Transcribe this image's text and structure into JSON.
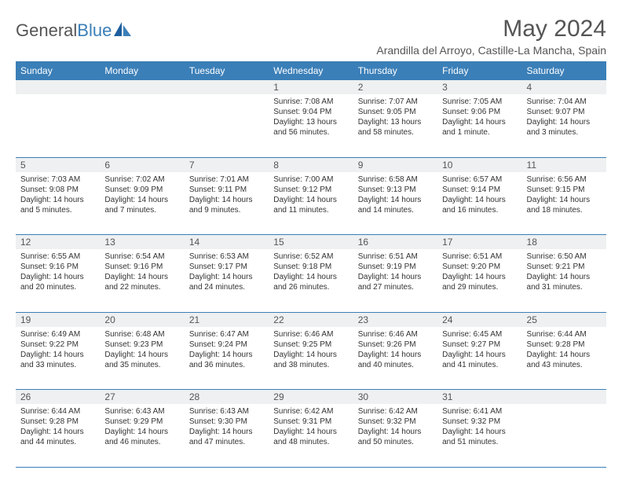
{
  "branding": {
    "textGray": "General",
    "textBlue": "Blue"
  },
  "header": {
    "title": "May 2024",
    "location": "Arandilla del Arroyo, Castille-La Mancha, Spain"
  },
  "colors": {
    "accent": "#3b7fb8",
    "dayRowBg": "#eef0f1",
    "textGray": "#555555",
    "textBody": "#333333"
  },
  "dayNames": [
    "Sunday",
    "Monday",
    "Tuesday",
    "Wednesday",
    "Thursday",
    "Friday",
    "Saturday"
  ],
  "weeks": [
    {
      "nums": [
        "",
        "",
        "",
        "1",
        "2",
        "3",
        "4"
      ],
      "cells": [
        {
          "sr": "",
          "ss": "",
          "dl": ""
        },
        {
          "sr": "",
          "ss": "",
          "dl": ""
        },
        {
          "sr": "",
          "ss": "",
          "dl": ""
        },
        {
          "sr": "Sunrise: 7:08 AM",
          "ss": "Sunset: 9:04 PM",
          "dl": "Daylight: 13 hours and 56 minutes."
        },
        {
          "sr": "Sunrise: 7:07 AM",
          "ss": "Sunset: 9:05 PM",
          "dl": "Daylight: 13 hours and 58 minutes."
        },
        {
          "sr": "Sunrise: 7:05 AM",
          "ss": "Sunset: 9:06 PM",
          "dl": "Daylight: 14 hours and 1 minute."
        },
        {
          "sr": "Sunrise: 7:04 AM",
          "ss": "Sunset: 9:07 PM",
          "dl": "Daylight: 14 hours and 3 minutes."
        }
      ]
    },
    {
      "nums": [
        "5",
        "6",
        "7",
        "8",
        "9",
        "10",
        "11"
      ],
      "cells": [
        {
          "sr": "Sunrise: 7:03 AM",
          "ss": "Sunset: 9:08 PM",
          "dl": "Daylight: 14 hours and 5 minutes."
        },
        {
          "sr": "Sunrise: 7:02 AM",
          "ss": "Sunset: 9:09 PM",
          "dl": "Daylight: 14 hours and 7 minutes."
        },
        {
          "sr": "Sunrise: 7:01 AM",
          "ss": "Sunset: 9:11 PM",
          "dl": "Daylight: 14 hours and 9 minutes."
        },
        {
          "sr": "Sunrise: 7:00 AM",
          "ss": "Sunset: 9:12 PM",
          "dl": "Daylight: 14 hours and 11 minutes."
        },
        {
          "sr": "Sunrise: 6:58 AM",
          "ss": "Sunset: 9:13 PM",
          "dl": "Daylight: 14 hours and 14 minutes."
        },
        {
          "sr": "Sunrise: 6:57 AM",
          "ss": "Sunset: 9:14 PM",
          "dl": "Daylight: 14 hours and 16 minutes."
        },
        {
          "sr": "Sunrise: 6:56 AM",
          "ss": "Sunset: 9:15 PM",
          "dl": "Daylight: 14 hours and 18 minutes."
        }
      ]
    },
    {
      "nums": [
        "12",
        "13",
        "14",
        "15",
        "16",
        "17",
        "18"
      ],
      "cells": [
        {
          "sr": "Sunrise: 6:55 AM",
          "ss": "Sunset: 9:16 PM",
          "dl": "Daylight: 14 hours and 20 minutes."
        },
        {
          "sr": "Sunrise: 6:54 AM",
          "ss": "Sunset: 9:16 PM",
          "dl": "Daylight: 14 hours and 22 minutes."
        },
        {
          "sr": "Sunrise: 6:53 AM",
          "ss": "Sunset: 9:17 PM",
          "dl": "Daylight: 14 hours and 24 minutes."
        },
        {
          "sr": "Sunrise: 6:52 AM",
          "ss": "Sunset: 9:18 PM",
          "dl": "Daylight: 14 hours and 26 minutes."
        },
        {
          "sr": "Sunrise: 6:51 AM",
          "ss": "Sunset: 9:19 PM",
          "dl": "Daylight: 14 hours and 27 minutes."
        },
        {
          "sr": "Sunrise: 6:51 AM",
          "ss": "Sunset: 9:20 PM",
          "dl": "Daylight: 14 hours and 29 minutes."
        },
        {
          "sr": "Sunrise: 6:50 AM",
          "ss": "Sunset: 9:21 PM",
          "dl": "Daylight: 14 hours and 31 minutes."
        }
      ]
    },
    {
      "nums": [
        "19",
        "20",
        "21",
        "22",
        "23",
        "24",
        "25"
      ],
      "cells": [
        {
          "sr": "Sunrise: 6:49 AM",
          "ss": "Sunset: 9:22 PM",
          "dl": "Daylight: 14 hours and 33 minutes."
        },
        {
          "sr": "Sunrise: 6:48 AM",
          "ss": "Sunset: 9:23 PM",
          "dl": "Daylight: 14 hours and 35 minutes."
        },
        {
          "sr": "Sunrise: 6:47 AM",
          "ss": "Sunset: 9:24 PM",
          "dl": "Daylight: 14 hours and 36 minutes."
        },
        {
          "sr": "Sunrise: 6:46 AM",
          "ss": "Sunset: 9:25 PM",
          "dl": "Daylight: 14 hours and 38 minutes."
        },
        {
          "sr": "Sunrise: 6:46 AM",
          "ss": "Sunset: 9:26 PM",
          "dl": "Daylight: 14 hours and 40 minutes."
        },
        {
          "sr": "Sunrise: 6:45 AM",
          "ss": "Sunset: 9:27 PM",
          "dl": "Daylight: 14 hours and 41 minutes."
        },
        {
          "sr": "Sunrise: 6:44 AM",
          "ss": "Sunset: 9:28 PM",
          "dl": "Daylight: 14 hours and 43 minutes."
        }
      ]
    },
    {
      "nums": [
        "26",
        "27",
        "28",
        "29",
        "30",
        "31",
        ""
      ],
      "cells": [
        {
          "sr": "Sunrise: 6:44 AM",
          "ss": "Sunset: 9:28 PM",
          "dl": "Daylight: 14 hours and 44 minutes."
        },
        {
          "sr": "Sunrise: 6:43 AM",
          "ss": "Sunset: 9:29 PM",
          "dl": "Daylight: 14 hours and 46 minutes."
        },
        {
          "sr": "Sunrise: 6:43 AM",
          "ss": "Sunset: 9:30 PM",
          "dl": "Daylight: 14 hours and 47 minutes."
        },
        {
          "sr": "Sunrise: 6:42 AM",
          "ss": "Sunset: 9:31 PM",
          "dl": "Daylight: 14 hours and 48 minutes."
        },
        {
          "sr": "Sunrise: 6:42 AM",
          "ss": "Sunset: 9:32 PM",
          "dl": "Daylight: 14 hours and 50 minutes."
        },
        {
          "sr": "Sunrise: 6:41 AM",
          "ss": "Sunset: 9:32 PM",
          "dl": "Daylight: 14 hours and 51 minutes."
        },
        {
          "sr": "",
          "ss": "",
          "dl": ""
        }
      ]
    }
  ]
}
